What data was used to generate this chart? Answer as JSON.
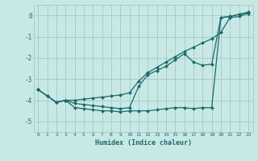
{
  "xlabel": "Humidex (Indice chaleur)",
  "background_color": "#c8e8e5",
  "grid_color": "#a8ceca",
  "line_color": "#1a6b6b",
  "x_values": [
    0,
    1,
    2,
    3,
    4,
    5,
    6,
    7,
    8,
    9,
    10,
    11,
    12,
    13,
    14,
    15,
    16,
    17,
    18,
    19,
    20,
    21,
    22,
    23
  ],
  "curve1": [
    -3.5,
    -3.8,
    -4.1,
    -4.0,
    -4.0,
    -3.95,
    -3.9,
    -3.85,
    -3.8,
    -3.75,
    -3.65,
    -3.1,
    -2.7,
    -2.45,
    -2.2,
    -1.95,
    -1.7,
    -1.5,
    -1.3,
    -1.1,
    -0.8,
    -0.1,
    -0.05,
    0.1
  ],
  "curve2": [
    -3.5,
    -3.8,
    -4.1,
    -4.0,
    -4.15,
    -4.2,
    -4.25,
    -4.3,
    -4.35,
    -4.4,
    -4.35,
    -3.35,
    -2.8,
    -2.6,
    -2.4,
    -2.1,
    -1.8,
    -2.2,
    -2.35,
    -2.3,
    -0.1,
    -0.05,
    0.05,
    0.15
  ],
  "curve3": [
    -3.5,
    -3.8,
    -4.1,
    -4.0,
    -4.35,
    -4.4,
    -4.45,
    -4.5,
    -4.5,
    -4.55,
    -4.5,
    -4.5,
    -4.5,
    -4.45,
    -4.4,
    -4.35,
    -4.35,
    -4.4,
    -4.35,
    -4.35,
    -0.1,
    -0.05,
    0.05,
    0.15
  ],
  "ylim": [
    -5.5,
    0.5
  ],
  "xlim": [
    -0.5,
    23.5
  ],
  "yticks": [
    0,
    -1,
    -2,
    -3,
    -4,
    -5
  ],
  "xticks": [
    0,
    1,
    2,
    3,
    4,
    5,
    6,
    7,
    8,
    9,
    10,
    11,
    12,
    13,
    14,
    15,
    16,
    17,
    18,
    19,
    20,
    21,
    22,
    23
  ]
}
